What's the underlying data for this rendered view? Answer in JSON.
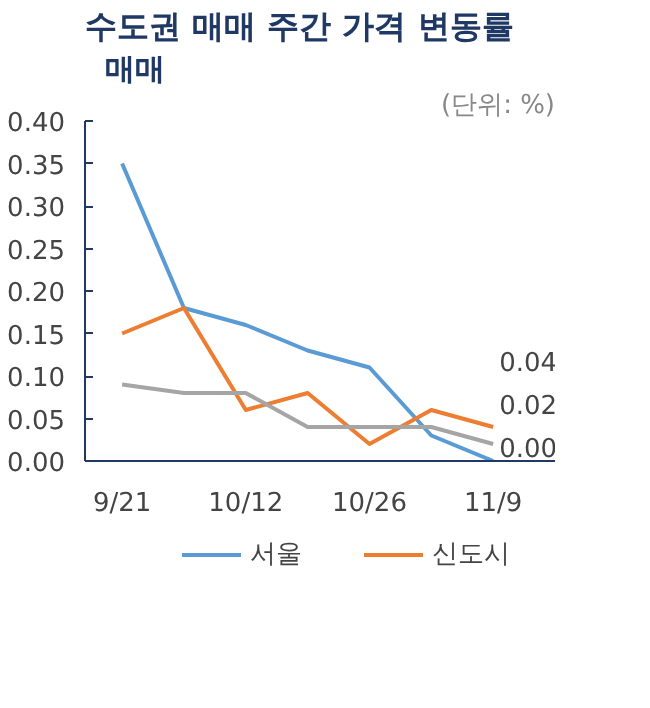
{
  "chart_data": {
    "type": "line",
    "title": "수도권 매매 주간 가격 변동률",
    "subtitle": "매매",
    "annotations": [
      "(단위: %)"
    ],
    "categories": [
      "9/21",
      null,
      "10/12",
      null,
      "10/26",
      null,
      "11/9"
    ],
    "series": [
      {
        "name": "서울",
        "color": "#5b9bd5",
        "values": [
          0.35,
          0.18,
          0.16,
          0.13,
          0.11,
          0.03,
          0.0
        ],
        "value_labels": [
          null,
          null,
          null,
          null,
          null,
          null,
          "0.00"
        ]
      },
      {
        "name": "신도시",
        "color": "#ed7d31",
        "values": [
          0.15,
          0.18,
          0.06,
          0.08,
          0.02,
          0.06,
          0.04
        ],
        "value_labels": [
          null,
          null,
          null,
          null,
          null,
          null,
          "0.04"
        ]
      },
      {
        "color": "#a5a5a5",
        "values": [
          0.09,
          0.08,
          0.08,
          0.04,
          0.04,
          0.04,
          0.02
        ],
        "value_labels": [
          null,
          null,
          null,
          null,
          null,
          null,
          "0.02"
        ]
      }
    ],
    "ylim": [
      0,
      0.4
    ],
    "yticks": [
      {
        "value": 0,
        "label": "0.00"
      },
      {
        "value": 0.05,
        "label": "0.05"
      },
      {
        "value": 0.1,
        "label": "0.10"
      },
      {
        "value": 0.15,
        "label": "0.15"
      },
      {
        "value": 0.2,
        "label": "0.20"
      },
      {
        "value": 0.25,
        "label": "0.25"
      },
      {
        "value": 0.3,
        "label": "0.30"
      },
      {
        "value": 0.35,
        "label": "0.35"
      },
      {
        "value": 0.4,
        "label": "0.40"
      }
    ],
    "grid": false,
    "legend": "bottom",
    "line_style": "solid",
    "marker": "none"
  }
}
